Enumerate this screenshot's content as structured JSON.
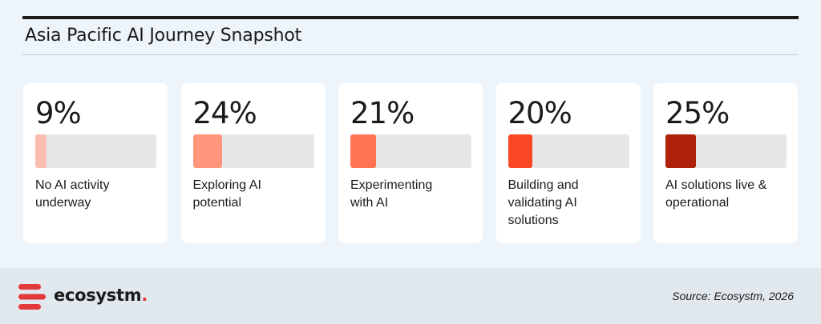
{
  "title": "Asia Pacific AI Journey Snapshot",
  "chart_data": {
    "type": "bar",
    "title": "Asia Pacific AI Journey Snapshot",
    "categories": [
      "No AI activity underway",
      "Exploring AI potential",
      "Experimenting with AI",
      "Building and validating AI solutions",
      "AI solutions live & operational"
    ],
    "values": [
      9,
      24,
      21,
      20,
      25
    ],
    "value_labels": [
      "9%",
      "24%",
      "21%",
      "20%",
      "25%"
    ],
    "label_lines": [
      [
        "No AI activity",
        "underway"
      ],
      [
        "Exploring AI",
        "potential"
      ],
      [
        "Experimenting",
        "with AI"
      ],
      [
        "Building and",
        "validating AI",
        "solutions"
      ],
      [
        "AI solutions live &",
        "operational"
      ]
    ],
    "colors": [
      "#fbbcb1",
      "#ff957a",
      "#ff7351",
      "#fb4824",
      "#ad2208"
    ],
    "track_color": "#e7e7e7"
  },
  "footer": {
    "brand": "ecosystm",
    "brand_dot": ".",
    "source": "Source: Ecosystm, 2026"
  },
  "colors": {
    "brand_red": "#e23a3a",
    "text": "#1b1b1b"
  }
}
